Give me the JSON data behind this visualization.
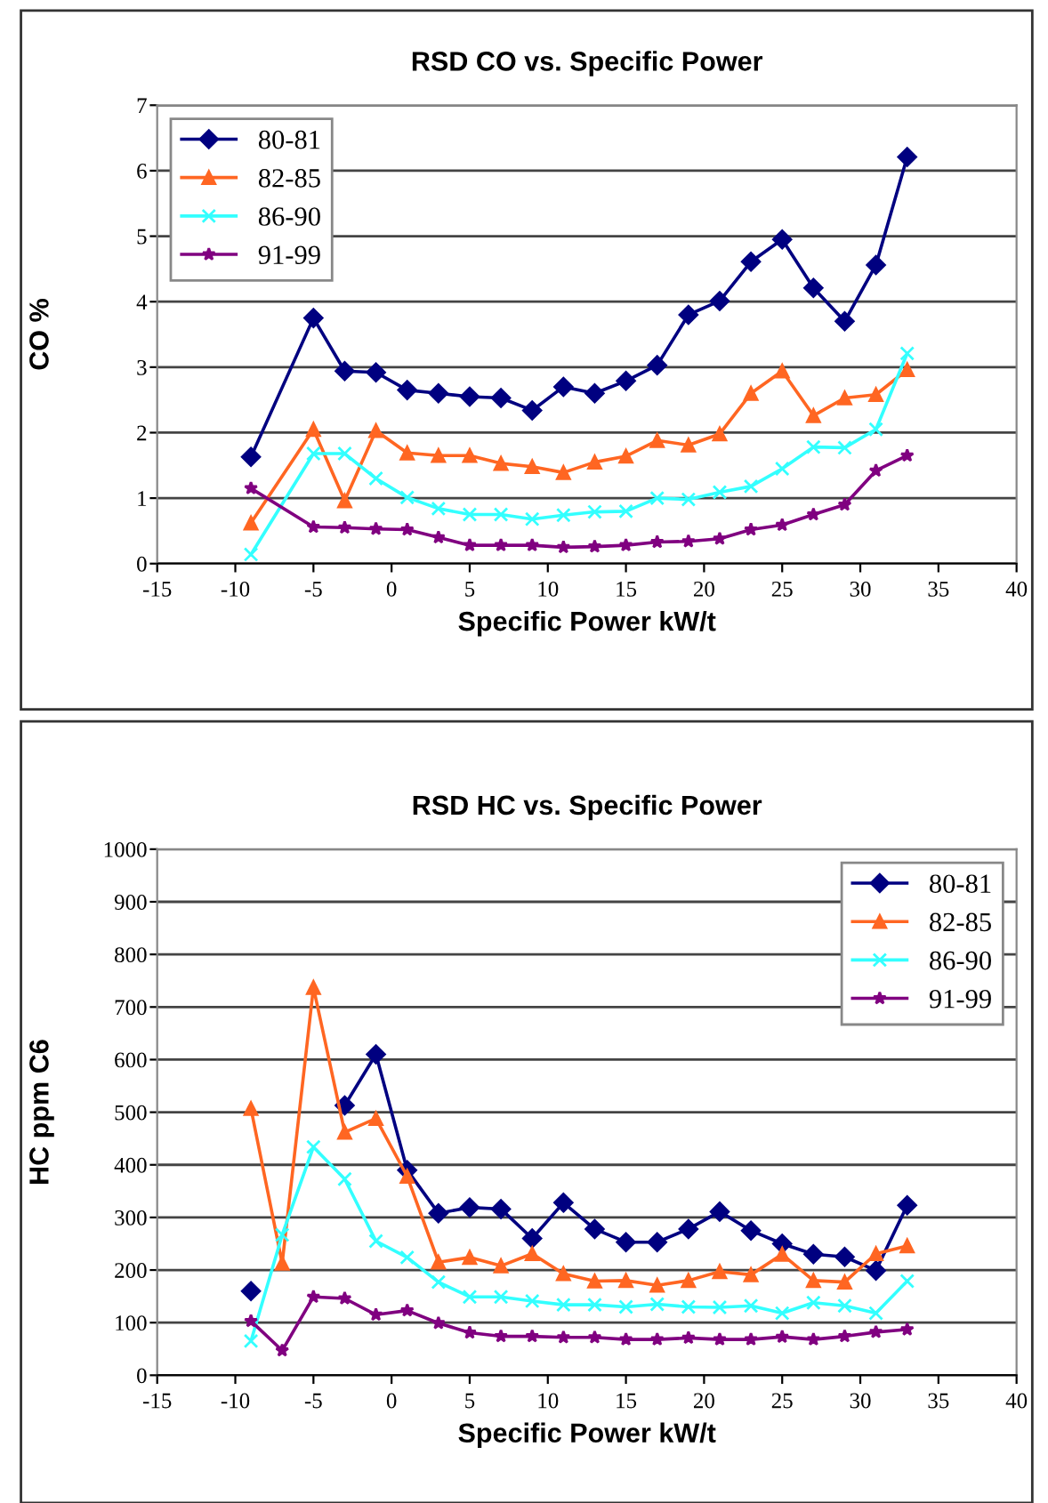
{
  "chart_data": [
    {
      "type": "line",
      "title": "RSD CO vs. Specific Power",
      "xlabel": "Specific Power kW/t",
      "ylabel": "CO %",
      "xlim": [
        -15,
        40
      ],
      "xticks": [
        -15,
        -10,
        -5,
        0,
        5,
        10,
        15,
        20,
        25,
        30,
        35,
        40
      ],
      "ylim": [
        0,
        7
      ],
      "yticks": [
        0,
        1,
        2,
        3,
        4,
        5,
        6,
        7
      ],
      "grid": "y",
      "legend": "top left",
      "x": [
        -9,
        -5,
        -3,
        -1,
        1,
        3,
        5,
        7,
        9,
        11,
        13,
        15,
        17,
        19,
        21,
        23,
        25,
        27,
        29,
        31,
        33
      ],
      "series": [
        {
          "name": "80-81",
          "color": "#000080",
          "marker": "diamond",
          "values": [
            1.63,
            3.75,
            2.94,
            2.92,
            2.65,
            2.6,
            2.55,
            2.53,
            2.34,
            2.7,
            2.6,
            2.79,
            3.03,
            3.8,
            4.01,
            4.61,
            4.95,
            4.21,
            3.7,
            4.56,
            6.21
          ]
        },
        {
          "name": "82-85",
          "color": "#ff6622",
          "marker": "triangle",
          "values": [
            0.62,
            2.05,
            0.96,
            2.03,
            1.69,
            1.65,
            1.65,
            1.53,
            1.48,
            1.39,
            1.55,
            1.64,
            1.88,
            1.81,
            1.98,
            2.6,
            2.94,
            2.26,
            2.53,
            2.58,
            2.96
          ]
        },
        {
          "name": "86-90",
          "color": "#33ffff",
          "marker": "cross",
          "values": [
            0.14,
            1.68,
            1.68,
            1.3,
            1.01,
            0.84,
            0.75,
            0.75,
            0.68,
            0.74,
            0.79,
            0.8,
            1.0,
            0.98,
            1.09,
            1.18,
            1.45,
            1.78,
            1.77,
            2.05,
            3.21
          ]
        },
        {
          "name": "91-99",
          "color": "#800080",
          "marker": "star",
          "values": [
            1.15,
            0.56,
            0.55,
            0.53,
            0.52,
            0.4,
            0.28,
            0.28,
            0.28,
            0.25,
            0.26,
            0.28,
            0.33,
            0.34,
            0.38,
            0.52,
            0.59,
            0.75,
            0.9,
            1.42,
            1.65
          ]
        }
      ]
    },
    {
      "type": "line",
      "title": "RSD HC vs. Specific Power",
      "xlabel": "Specific Power kW/t",
      "ylabel": "HC ppm C6",
      "xlim": [
        -15,
        40
      ],
      "xticks": [
        -15,
        -10,
        -5,
        0,
        5,
        10,
        15,
        20,
        25,
        30,
        35,
        40
      ],
      "ylim": [
        0,
        1000
      ],
      "yticks": [
        0,
        100,
        200,
        300,
        400,
        500,
        600,
        700,
        800,
        900,
        1000
      ],
      "grid": "y",
      "legend": "top right",
      "x": [
        -9,
        -7,
        -5,
        -3,
        -1,
        1,
        3,
        5,
        7,
        9,
        11,
        13,
        15,
        17,
        19,
        21,
        23,
        25,
        27,
        29,
        31,
        33
      ],
      "series": [
        {
          "name": "80-81",
          "color": "#000080",
          "marker": "diamond",
          "values": [
            160,
            null,
            null,
            513,
            610,
            390,
            308,
            319,
            316,
            260,
            328,
            278,
            253,
            253,
            278,
            311,
            275,
            250,
            230,
            225,
            199,
            323
          ]
        },
        {
          "name": "82-85",
          "color": "#ff6622",
          "marker": "triangle",
          "values": [
            507,
            213,
            737,
            462,
            488,
            378,
            215,
            224,
            208,
            231,
            193,
            179,
            180,
            171,
            180,
            197,
            191,
            230,
            180,
            177,
            231,
            246
          ]
        },
        {
          "name": "86-90",
          "color": "#33ffff",
          "marker": "cross",
          "values": [
            65,
            267,
            434,
            373,
            255,
            224,
            177,
            149,
            149,
            141,
            134,
            134,
            130,
            135,
            130,
            129,
            132,
            118,
            138,
            132,
            118,
            179
          ]
        },
        {
          "name": "91-99",
          "color": "#800080",
          "marker": "star",
          "values": [
            103,
            47,
            149,
            146,
            115,
            123,
            99,
            81,
            74,
            74,
            72,
            72,
            68,
            68,
            71,
            68,
            68,
            73,
            68,
            74,
            82,
            87
          ]
        }
      ]
    }
  ]
}
